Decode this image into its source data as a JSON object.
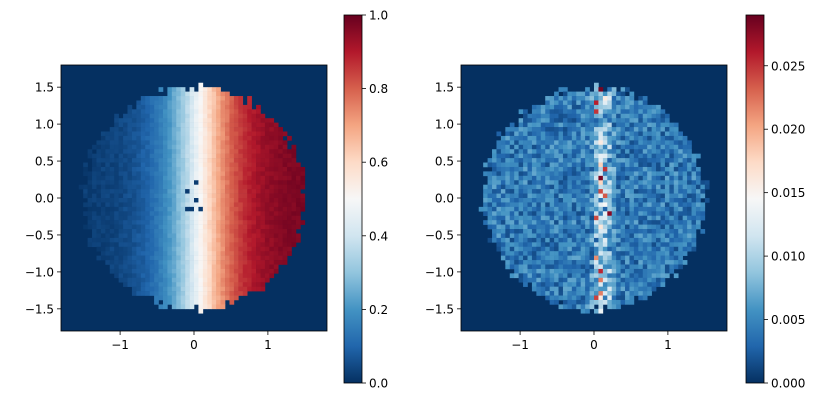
{
  "colormap": {
    "name": "RdBu_r",
    "stops": [
      "#053061",
      "#2166ac",
      "#4393c3",
      "#92c5de",
      "#d1e5f0",
      "#f7f7f7",
      "#fddbc7",
      "#f4a582",
      "#d6604d",
      "#b2182b",
      "#67001f"
    ]
  },
  "chart_data": [
    {
      "type": "heatmap",
      "title": "",
      "xlabel": "",
      "ylabel": "",
      "xlim": [
        -1.8,
        1.8
      ],
      "ylim": [
        -1.8,
        1.8
      ],
      "xticks": [
        -1,
        0,
        1
      ],
      "xtick_labels": [
        "−1",
        "0",
        "1"
      ],
      "yticks": [
        1.5,
        1.0,
        0.5,
        0.0,
        -0.5,
        -1.0,
        -1.5
      ],
      "ytick_labels": [
        "1.5",
        "1.0",
        "0.5",
        "0.0",
        "−0.5",
        "−1.0",
        "−1.5"
      ],
      "grid": false,
      "grid_size": 60,
      "disk_radius": 1.5,
      "background_value": 0.0,
      "description_of_field": "value increases left to right across a disk of radius ~1.5; dark blue (~0.05) at x=-1.5, white (~0.5) near x=0.1, dark red (~0.95) at x=1.5; scattered low-value cells near center",
      "colorbar": {
        "range": [
          0.0,
          1.0
        ],
        "ticks": [
          0.0,
          0.2,
          0.4,
          0.6,
          0.8,
          1.0
        ],
        "tick_labels": [
          "0.0",
          "0.2",
          "0.4",
          "0.6",
          "0.8",
          "1.0"
        ]
      }
    },
    {
      "type": "heatmap",
      "title": "",
      "xlabel": "",
      "ylabel": "",
      "xlim": [
        -1.8,
        1.8
      ],
      "ylim": [
        -1.8,
        1.8
      ],
      "xticks": [
        -1,
        0,
        1
      ],
      "xtick_labels": [
        "−1",
        "0",
        "1"
      ],
      "yticks": [
        1.5,
        1.0,
        0.5,
        0.0,
        -0.5,
        -1.0,
        -1.5
      ],
      "ytick_labels": [
        "1.5",
        "1.0",
        "0.5",
        "0.0",
        "−0.5",
        "−1.0",
        "−1.5"
      ],
      "grid": false,
      "grid_size": 60,
      "disk_radius": 1.5,
      "background_value": 0.0,
      "description_of_field": "noisy values mostly 0.001–0.008 inside disk, higher along vertical band near x≈0.1–0.2 (up to ~0.029)",
      "colorbar": {
        "range": [
          0.0,
          0.029
        ],
        "ticks": [
          0.0,
          0.005,
          0.01,
          0.015,
          0.02,
          0.025
        ],
        "tick_labels": [
          "0.000",
          "0.005",
          "0.010",
          "0.015",
          "0.020",
          "0.025"
        ]
      }
    }
  ]
}
